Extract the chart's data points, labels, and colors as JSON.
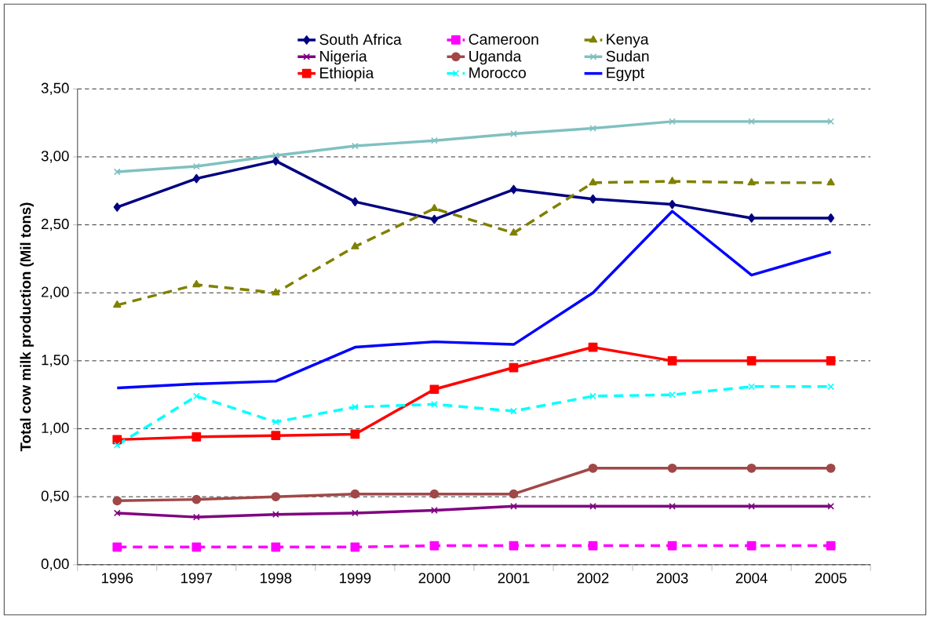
{
  "chart_data": {
    "type": "line",
    "ylabel": "Total cow milk production (Mil tons)",
    "categories": [
      "1996",
      "1997",
      "1998",
      "1999",
      "2000",
      "2001",
      "2002",
      "2003",
      "2004",
      "2005"
    ],
    "ylim": [
      0,
      3.5
    ],
    "yticks": [
      {
        "value": 0,
        "label": "0,00"
      },
      {
        "value": 0.5,
        "label": "0,50"
      },
      {
        "value": 1,
        "label": "1,00"
      },
      {
        "value": 1.5,
        "label": "1,50"
      },
      {
        "value": 2,
        "label": "2,00"
      },
      {
        "value": 2.5,
        "label": "2,50"
      },
      {
        "value": 3,
        "label": "3,00"
      },
      {
        "value": 3.5,
        "label": "3,50"
      }
    ],
    "grid": "y",
    "legend": "top",
    "series": [
      {
        "name": "South Africa",
        "color": "#000080",
        "marker": "diamond",
        "line_style": "solid",
        "values": [
          2.63,
          2.84,
          2.97,
          2.67,
          2.54,
          2.76,
          2.69,
          2.65,
          2.55,
          2.55
        ]
      },
      {
        "name": "Nigeria",
        "color": "#800080",
        "marker": "cross",
        "line_style": "solid",
        "values": [
          0.38,
          0.35,
          0.37,
          0.38,
          0.4,
          0.43,
          0.43,
          0.43,
          0.43,
          0.43
        ]
      },
      {
        "name": "Ethiopia",
        "color": "#ff0000",
        "marker": "square",
        "line_style": "solid",
        "values": [
          0.92,
          0.94,
          0.95,
          0.96,
          1.29,
          1.45,
          1.6,
          1.5,
          1.5,
          1.5
        ]
      },
      {
        "name": "Cameroon",
        "color": "#ff00ff",
        "marker": "square",
        "line_style": "dashed",
        "values": [
          0.13,
          0.13,
          0.13,
          0.13,
          0.14,
          0.14,
          0.14,
          0.14,
          0.14,
          0.14
        ]
      },
      {
        "name": "Uganda",
        "color": "#a04848",
        "marker": "circle",
        "line_style": "solid",
        "values": [
          0.47,
          0.48,
          0.5,
          0.52,
          0.52,
          0.52,
          0.71,
          0.71,
          0.71,
          0.71
        ]
      },
      {
        "name": "Morocco",
        "color": "#00ffff",
        "marker": "cross",
        "line_style": "dashed",
        "values": [
          0.88,
          1.24,
          1.05,
          1.16,
          1.18,
          1.13,
          1.24,
          1.25,
          1.31,
          1.31
        ]
      },
      {
        "name": "Kenya",
        "color": "#808000",
        "marker": "triangle",
        "line_style": "dashed",
        "values": [
          1.91,
          2.06,
          2.0,
          2.34,
          2.62,
          2.44,
          2.81,
          2.82,
          2.81,
          2.81
        ]
      },
      {
        "name": "Sudan",
        "color": "#80c0c0",
        "marker": "cross",
        "line_style": "solid",
        "values": [
          2.89,
          2.93,
          3.01,
          3.08,
          3.12,
          3.17,
          3.21,
          3.26,
          3.26,
          3.26
        ]
      },
      {
        "name": "Egypt",
        "color": "#0000ff",
        "marker": "none",
        "line_style": "solid",
        "values": [
          1.3,
          1.33,
          1.35,
          1.6,
          1.64,
          1.62,
          2.0,
          2.6,
          2.13,
          2.3
        ]
      }
    ]
  }
}
